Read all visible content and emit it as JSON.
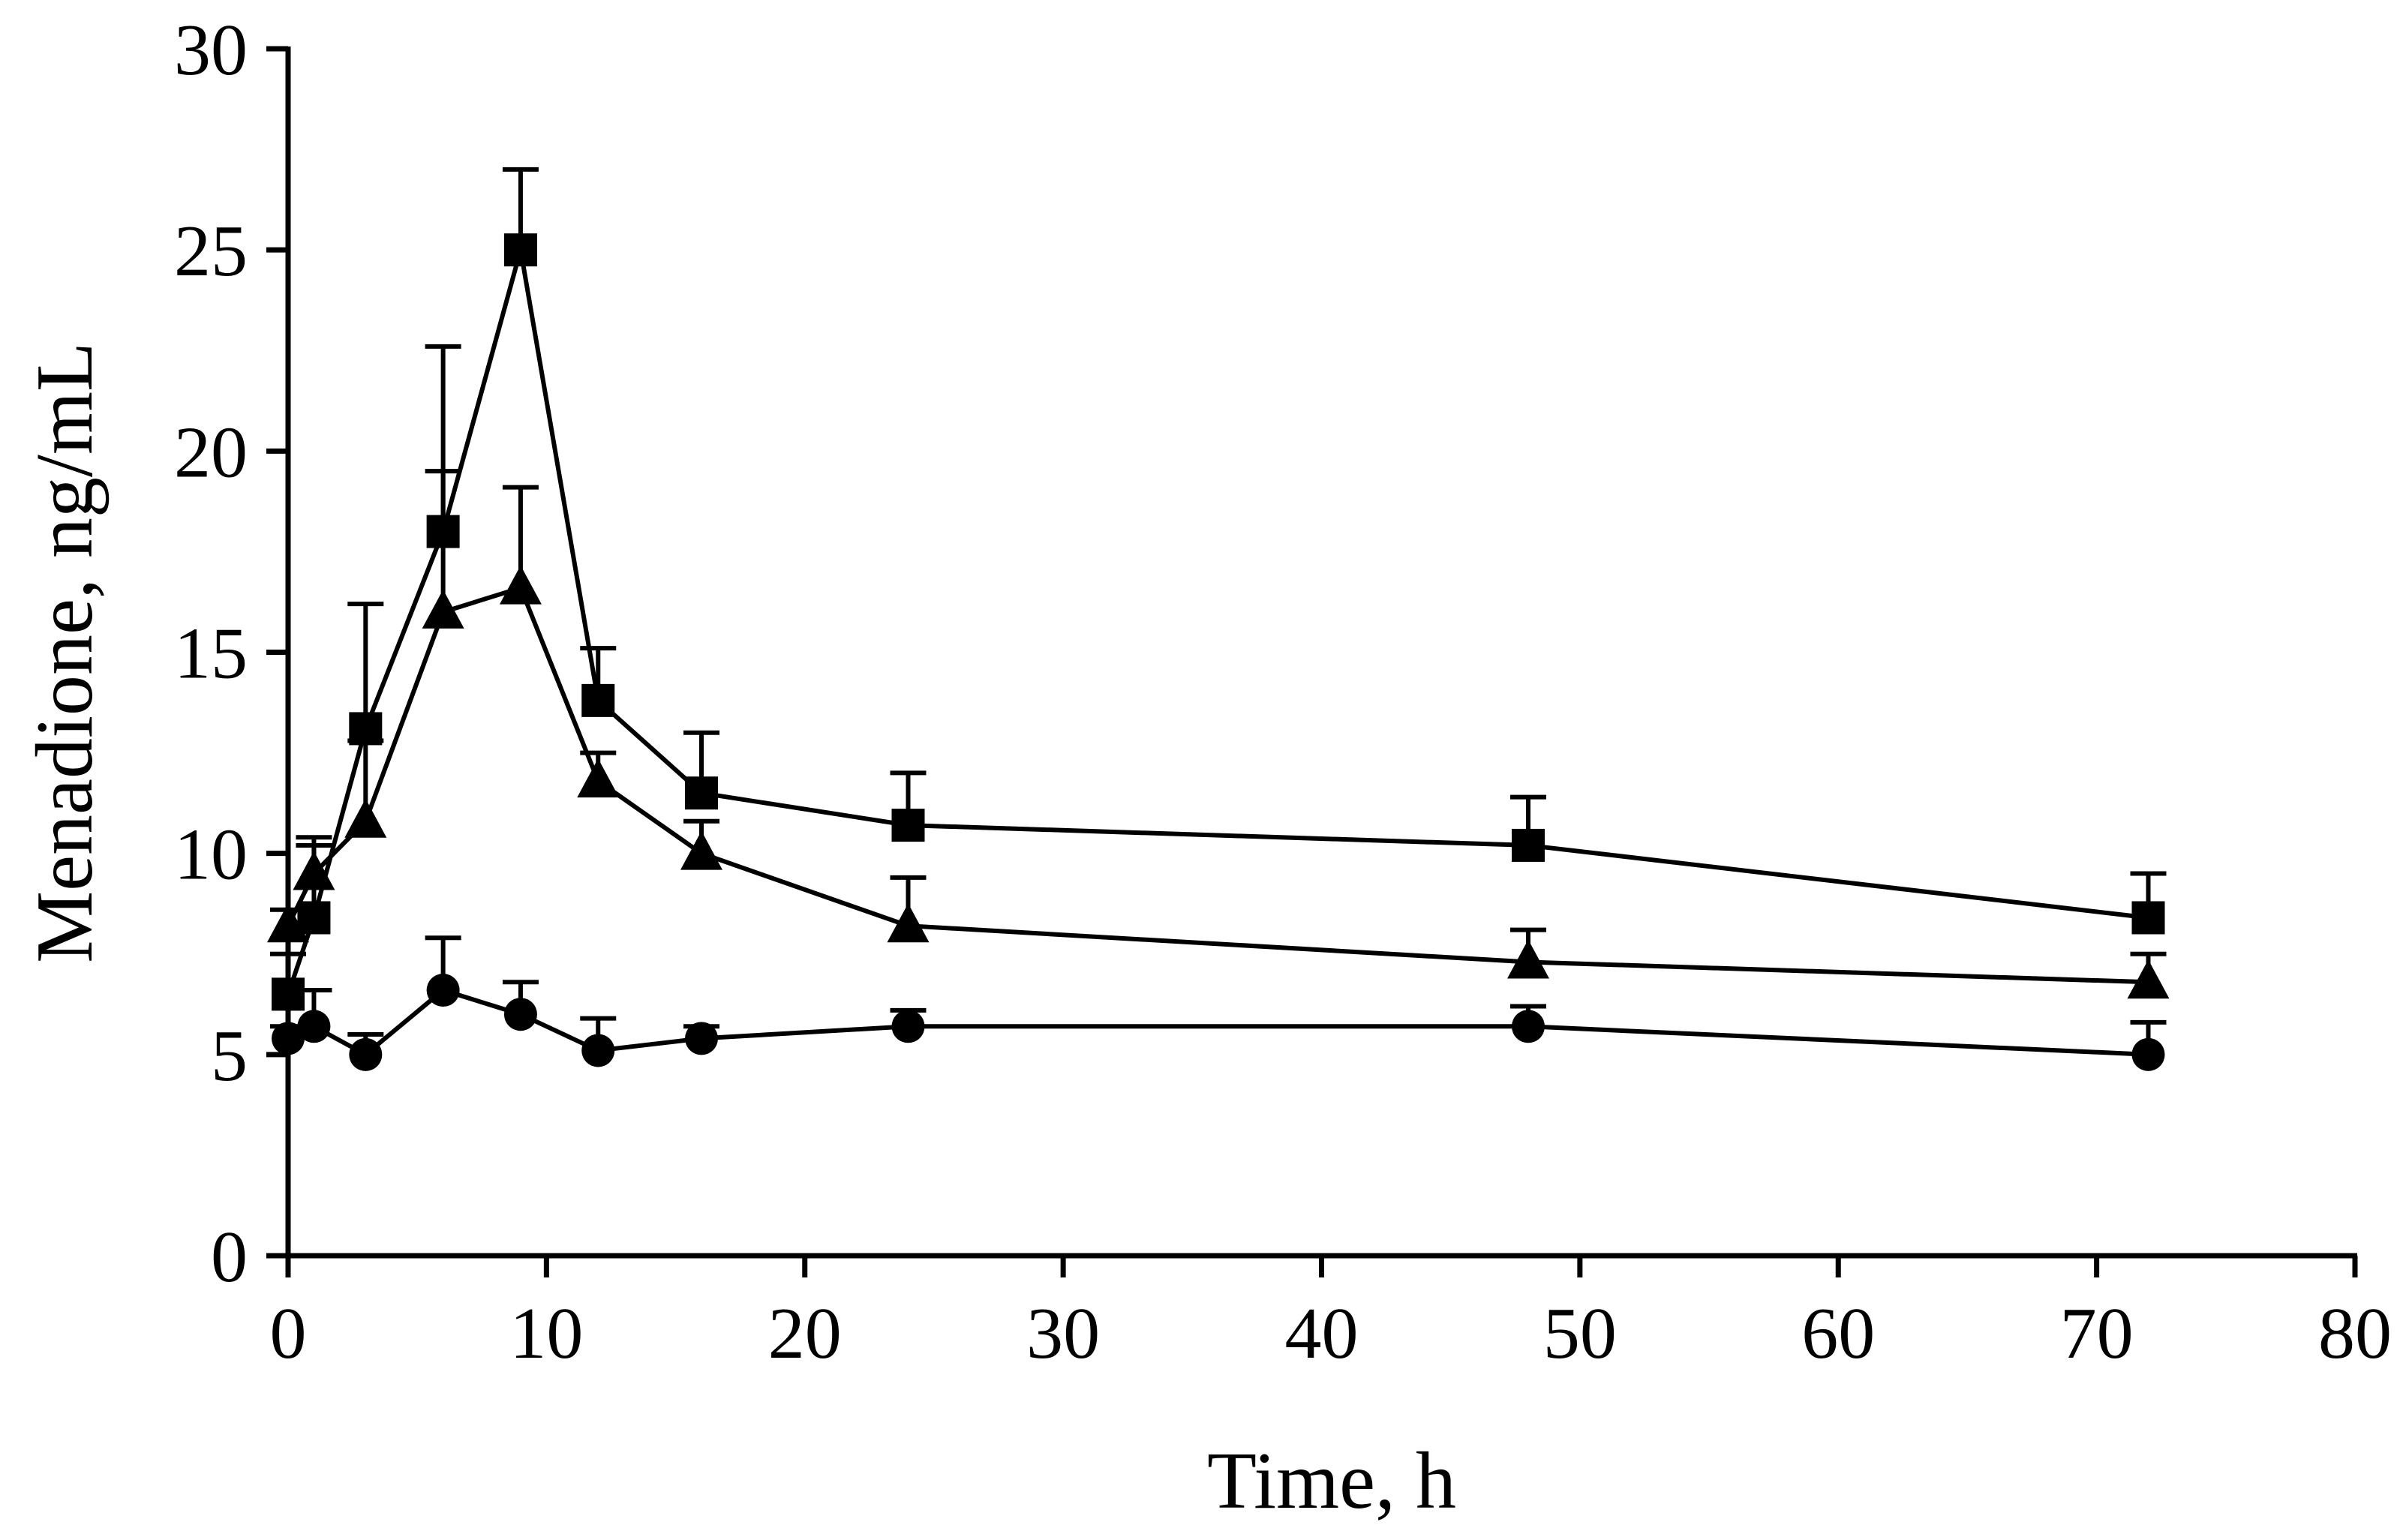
{
  "chart_data": {
    "type": "line",
    "title": "",
    "xlabel": "Time, h",
    "ylabel": "Menadione, ng/mL",
    "xlim": [
      0,
      80
    ],
    "ylim": [
      0,
      30
    ],
    "xticks": [
      0,
      10,
      20,
      30,
      40,
      50,
      60,
      70,
      80
    ],
    "yticks": [
      0,
      5,
      10,
      15,
      20,
      25,
      30
    ],
    "grid": false,
    "x": [
      0,
      1,
      3,
      6,
      9,
      12,
      16,
      24,
      48,
      72
    ],
    "series": [
      {
        "name": "square",
        "marker": "square",
        "values": [
          6.5,
          8.4,
          13.1,
          18.0,
          25.0,
          13.8,
          11.5,
          10.7,
          10.2,
          8.4
        ],
        "error": [
          1.0,
          1.8,
          3.1,
          4.6,
          2.0,
          1.3,
          1.5,
          1.3,
          1.2,
          1.1
        ]
      },
      {
        "name": "triangle",
        "marker": "triangle",
        "values": [
          8.2,
          9.5,
          10.8,
          16.0,
          16.6,
          11.8,
          10.0,
          8.2,
          7.3,
          6.8
        ],
        "error": [
          0.4,
          0.9,
          2.0,
          3.5,
          2.5,
          0.7,
          0.8,
          1.2,
          0.8,
          0.7
        ]
      },
      {
        "name": "circle",
        "marker": "circle",
        "values": [
          5.4,
          5.7,
          5.0,
          6.6,
          6.0,
          5.1,
          5.4,
          5.7,
          5.7,
          5.0
        ],
        "error": [
          0.3,
          0.9,
          0.5,
          1.3,
          0.8,
          0.8,
          0.3,
          0.4,
          0.5,
          0.8
        ]
      }
    ]
  }
}
